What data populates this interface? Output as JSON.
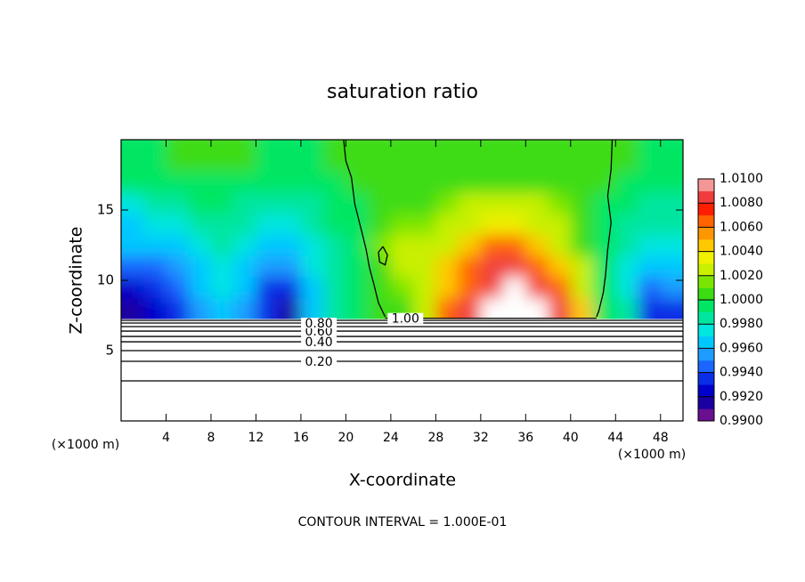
{
  "chart_data": {
    "type": "contour",
    "title": "saturation ratio",
    "xlabel": "X-coordinate",
    "ylabel": "Z-coordinate",
    "xunit": "(×1000 m)",
    "yunit": "(×1000 m)",
    "note": "CONTOUR INTERVAL = 1.000E-01",
    "xlim": [
      0,
      50
    ],
    "ylim": [
      0,
      20
    ],
    "xticks": [
      4,
      8,
      12,
      16,
      20,
      24,
      28,
      32,
      36,
      40,
      44,
      48
    ],
    "yticks": [
      5,
      10,
      15
    ],
    "colorbar": {
      "lim": [
        0.99,
        1.01
      ],
      "ticks": [
        {
          "value": 0.99,
          "label": "0.9900"
        },
        {
          "value": 0.992,
          "label": "0.9920"
        },
        {
          "value": 0.994,
          "label": "0.9940"
        },
        {
          "value": 0.996,
          "label": "0.9960"
        },
        {
          "value": 0.998,
          "label": "0.9980"
        },
        {
          "value": 1.0,
          "label": "1.0000"
        },
        {
          "value": 1.002,
          "label": "1.0020"
        },
        {
          "value": 1.004,
          "label": "1.0040"
        },
        {
          "value": 1.006,
          "label": "1.0060"
        },
        {
          "value": 1.008,
          "label": "1.0080"
        },
        {
          "value": 1.01,
          "label": "1.0100"
        }
      ],
      "colors": [
        "#6a0f8f",
        "#1a00a0",
        "#0000cc",
        "#0a2ee6",
        "#1a66ff",
        "#1e9cff",
        "#00c8ff",
        "#00e6e0",
        "#00e6a0",
        "#00e664",
        "#3cdc14",
        "#7ae600",
        "#c8f000",
        "#f0f000",
        "#ffc800",
        "#ff9600",
        "#ff6400",
        "#ff1e00",
        "#f03c3c",
        "#f59696"
      ]
    },
    "field": {
      "x": [
        1,
        3,
        5,
        7,
        9,
        11,
        13,
        15,
        17,
        19,
        21,
        23,
        25,
        27,
        29,
        31,
        33,
        35,
        37,
        39,
        41,
        43,
        45,
        47,
        49
      ],
      "z": [
        8,
        9.5,
        11,
        12.5,
        14,
        15.5,
        17,
        18.5
      ],
      "values": [
        [
          0.9915,
          0.9925,
          0.9935,
          0.9955,
          0.9965,
          0.9955,
          0.993,
          0.9915,
          0.996,
          0.9985,
          0.9995,
          1.0005,
          1.001,
          1.003,
          1.006,
          1.008,
          null,
          null,
          null,
          1.009,
          1.004,
          0.9995,
          0.998,
          0.993,
          0.9935
        ],
        [
          0.9925,
          0.993,
          0.994,
          0.996,
          0.997,
          0.996,
          0.9935,
          0.993,
          0.9965,
          0.9985,
          0.9995,
          1.0005,
          1.0015,
          1.003,
          1.005,
          1.007,
          1.009,
          null,
          1.009,
          1.007,
          1.003,
          0.9995,
          0.997,
          0.9945,
          0.995
        ],
        [
          0.9945,
          0.9945,
          0.995,
          0.9965,
          0.9975,
          0.9965,
          0.995,
          0.995,
          0.997,
          0.9985,
          0.9995,
          1.001,
          1.003,
          1.002,
          1.004,
          1.006,
          1.008,
          1.009,
          1.007,
          1.005,
          1.002,
          0.9995,
          0.9975,
          0.996,
          0.996
        ],
        [
          0.996,
          0.996,
          0.9965,
          0.997,
          0.998,
          0.997,
          0.9965,
          0.9965,
          0.9975,
          0.9985,
          0.9995,
          1.0015,
          1.003,
          1.002,
          1.003,
          1.005,
          1.006,
          1.006,
          1.005,
          1.003,
          1.001,
          0.9995,
          0.998,
          0.997,
          0.997
        ],
        [
          0.9965,
          0.997,
          0.9975,
          0.998,
          0.9985,
          0.998,
          0.997,
          0.997,
          0.998,
          0.999,
          0.9995,
          1.001,
          1.0015,
          1.0015,
          1.002,
          1.003,
          1.0035,
          1.0035,
          1.003,
          1.002,
          1.001,
          0.9995,
          0.9985,
          0.998,
          0.998
        ],
        [
          0.9975,
          0.998,
          0.9985,
          0.999,
          0.999,
          0.9985,
          0.998,
          0.998,
          0.9985,
          0.999,
          0.9995,
          1.0005,
          1.001,
          1.001,
          1.0015,
          1.002,
          1.002,
          1.002,
          1.002,
          1.0015,
          1.0005,
          0.9995,
          0.999,
          0.9985,
          0.9985
        ],
        [
          0.999,
          0.9995,
          0.9995,
          0.9995,
          0.9995,
          0.9995,
          0.999,
          0.999,
          0.9995,
          0.9995,
          1.0,
          1.0005,
          1.0005,
          1.001,
          1.001,
          1.001,
          1.001,
          1.001,
          1.001,
          1.001,
          1.0005,
          1.0,
          0.9995,
          0.9995,
          0.9995
        ],
        [
          0.9995,
          0.9995,
          1.0,
          1.0,
          1.0,
          1.0,
          0.9995,
          0.9995,
          0.9995,
          1.0,
          1.0,
          1.0005,
          1.0005,
          1.0005,
          1.0005,
          1.0005,
          1.0005,
          1.0005,
          1.0005,
          1.0005,
          1.0005,
          1.0,
          1.0,
          0.9995,
          0.9995
        ]
      ]
    },
    "contours": [
      {
        "x": [
          0,
          50
        ],
        "z": [
          2.85,
          2.85
        ]
      },
      {
        "label": "0.20",
        "label_x": 17.6,
        "x": [
          0,
          50
        ],
        "z": [
          4.24,
          4.24
        ]
      },
      {
        "x": [
          0,
          50
        ],
        "z": [
          5.0,
          5.0
        ]
      },
      {
        "label": "0.40",
        "label_x": 17.6,
        "x": [
          0,
          50
        ],
        "z": [
          5.63,
          5.63
        ]
      },
      {
        "x": [
          0,
          50
        ],
        "z": [
          6.01,
          6.01
        ]
      },
      {
        "label": "0.60",
        "label_x": 17.6,
        "x": [
          0,
          50
        ],
        "z": [
          6.39,
          6.39
        ]
      },
      {
        "x": [
          0,
          50
        ],
        "z": [
          6.71,
          6.71
        ]
      },
      {
        "label": "0.80",
        "label_x": 17.6,
        "x": [
          0,
          50
        ],
        "z": [
          6.96,
          6.96
        ]
      },
      {
        "x": [
          0,
          50
        ],
        "z": [
          7.15,
          7.15
        ]
      },
      {
        "label": "1.00",
        "label_x": 25.3,
        "x": [
          23.5,
          42.3
        ],
        "z": [
          7.3,
          7.3
        ]
      },
      {
        "x": [
          19.8,
          20.0,
          20.5,
          20.8,
          21.4,
          21.8,
          22.1,
          22.5,
          22.9,
          23.5
        ],
        "z": [
          20,
          18.5,
          17.3,
          15.4,
          13.5,
          12.2,
          10.9,
          9.7,
          8.4,
          7.4
        ]
      },
      {
        "x": [
          43.7,
          43.6,
          43.3,
          43.6,
          43.3,
          43.1,
          42.9,
          42.5,
          42.3
        ],
        "z": [
          20,
          17.9,
          16.0,
          14.1,
          12.2,
          10.3,
          9.1,
          7.8,
          7.4
        ]
      },
      {
        "x": [
          23.3,
          23.7,
          23.5,
          23.0,
          22.9,
          23.3
        ],
        "z": [
          12.4,
          11.8,
          11.1,
          11.3,
          12.0,
          12.4
        ]
      }
    ]
  }
}
